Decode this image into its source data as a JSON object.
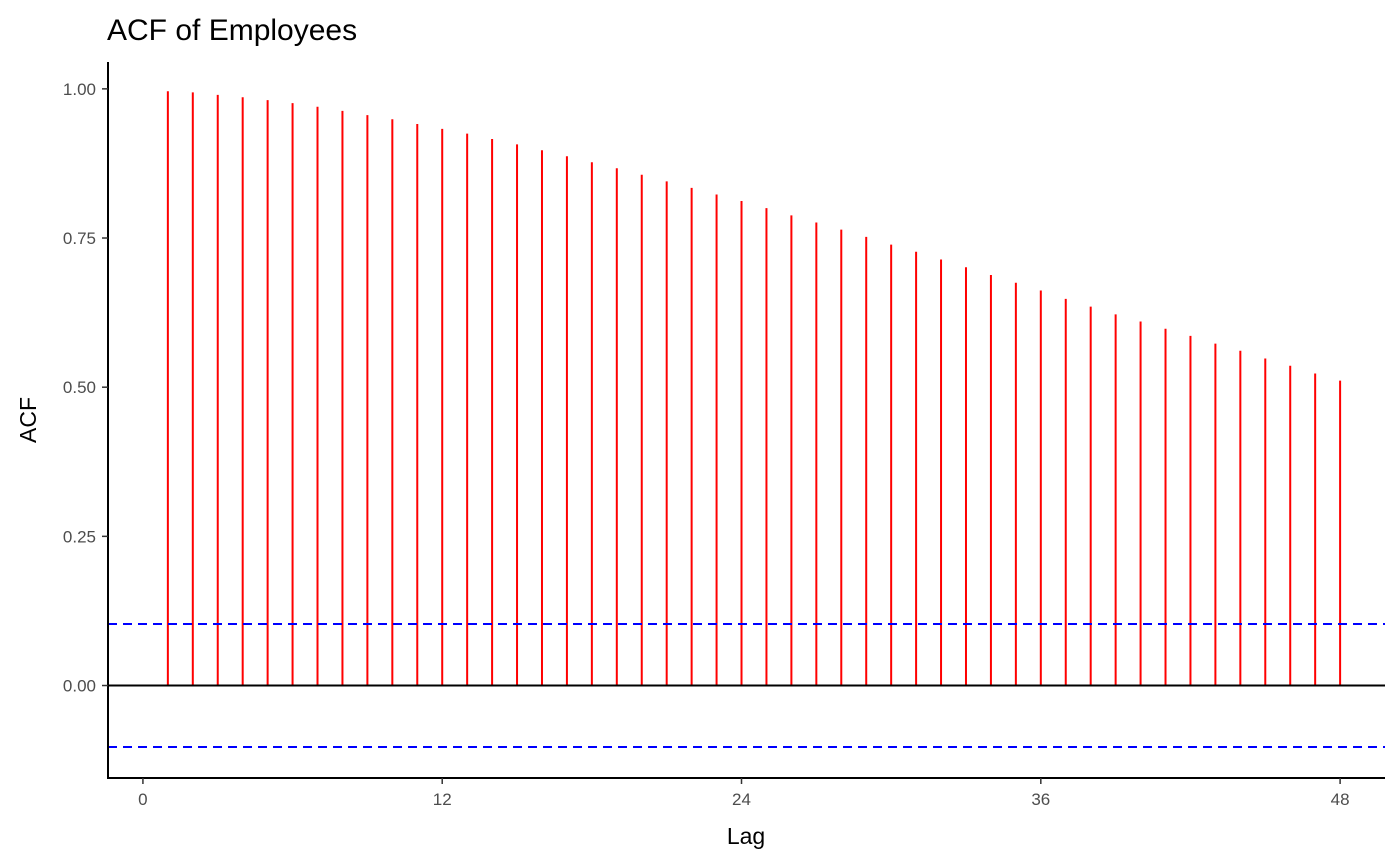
{
  "chart_data": {
    "type": "bar",
    "title": "ACF of Employees",
    "xlabel": "Lag",
    "ylabel": "ACF",
    "xlim": [
      -1.4,
      49.8
    ],
    "ylim": [
      -0.155,
      1.045
    ],
    "x_ticks": [
      0,
      12,
      24,
      36,
      48
    ],
    "y_ticks": [
      0.0,
      0.25,
      0.5,
      0.75,
      1.0
    ],
    "x_tick_labels": [
      "0",
      "12",
      "24",
      "36",
      "48"
    ],
    "y_tick_labels": [
      "0.00",
      "0.25",
      "0.50",
      "0.75",
      "1.00"
    ],
    "grid": false,
    "legend": "none",
    "x": [
      1,
      2,
      3,
      4,
      5,
      6,
      7,
      8,
      9,
      10,
      11,
      12,
      13,
      14,
      15,
      16,
      17,
      18,
      19,
      20,
      21,
      22,
      23,
      24,
      25,
      26,
      27,
      28,
      29,
      30,
      31,
      32,
      33,
      34,
      35,
      36,
      37,
      38,
      39,
      40,
      41,
      42,
      43,
      44,
      45,
      46,
      47,
      48
    ],
    "values": [
      0.996,
      0.994,
      0.99,
      0.986,
      0.981,
      0.976,
      0.97,
      0.963,
      0.956,
      0.949,
      0.941,
      0.933,
      0.925,
      0.916,
      0.907,
      0.897,
      0.887,
      0.877,
      0.867,
      0.856,
      0.845,
      0.834,
      0.823,
      0.812,
      0.8,
      0.788,
      0.776,
      0.764,
      0.752,
      0.739,
      0.727,
      0.714,
      0.701,
      0.688,
      0.675,
      0.662,
      0.648,
      0.635,
      0.622,
      0.61,
      0.598,
      0.586,
      0.573,
      0.561,
      0.548,
      0.536,
      0.523,
      0.511
    ],
    "confidence_bounds": [
      0.103,
      -0.103
    ],
    "colors": {
      "bars": "#ff0000",
      "confidence": "#0000ff",
      "zero_line": "#000000",
      "axis": "#000000"
    }
  }
}
